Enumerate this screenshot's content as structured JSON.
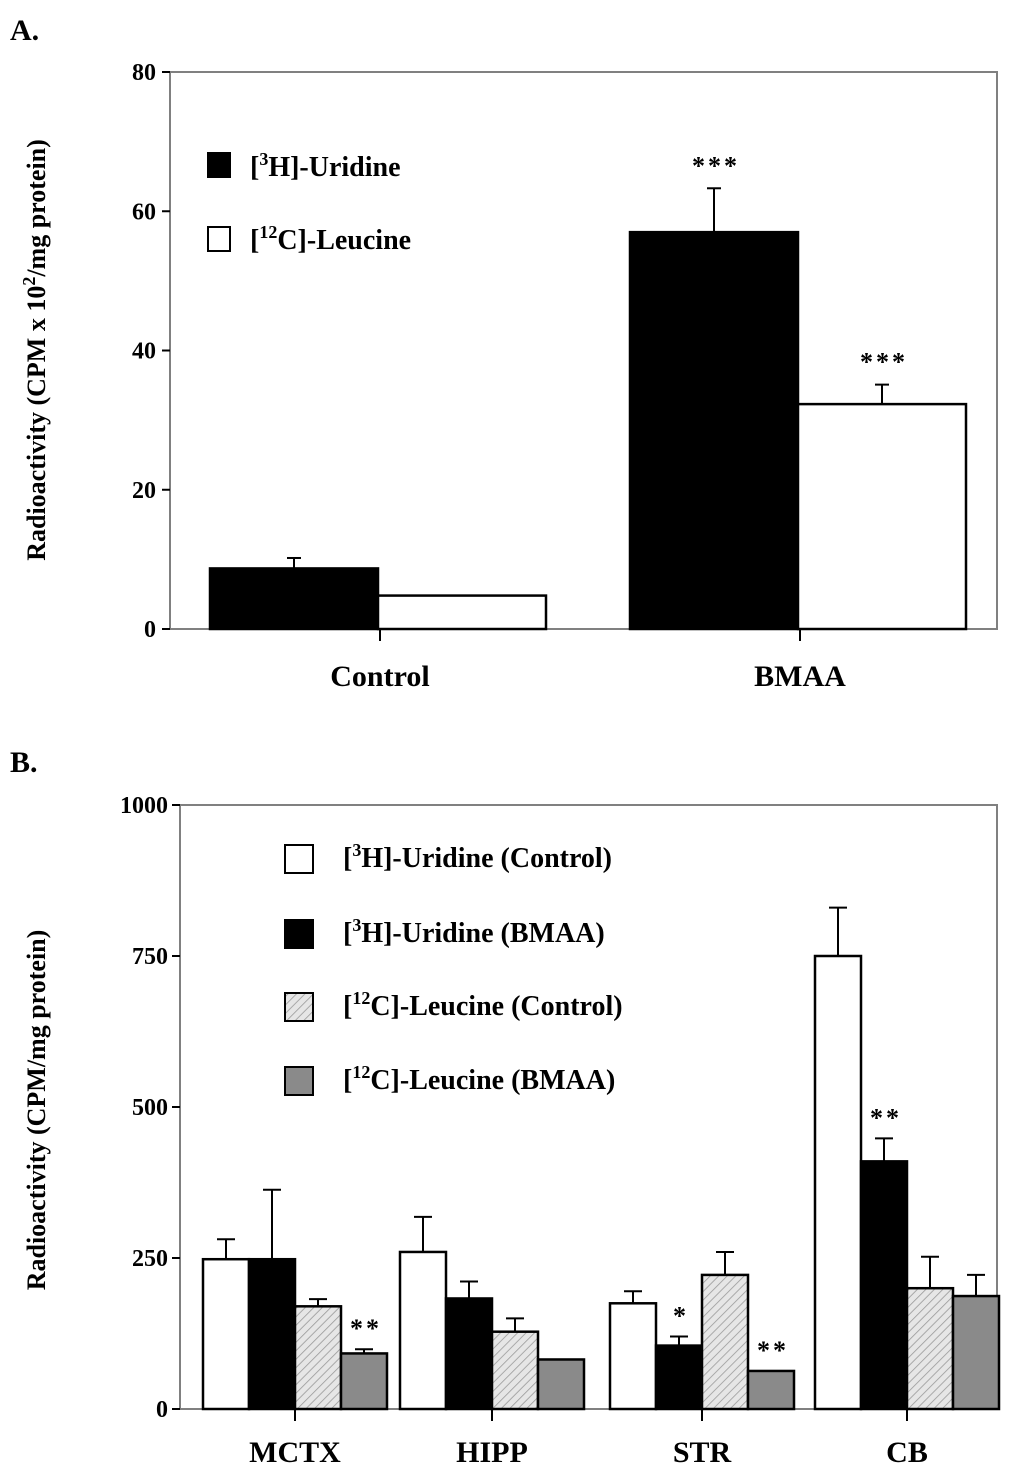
{
  "chart_data": [
    {
      "panel": "A.",
      "type": "bar",
      "categories": [
        "Control",
        "BMAA"
      ],
      "ylabel": {
        "main": "Radioactivity (CPM x 10",
        "sup": "2",
        "tail": "/mg protein)"
      },
      "ylim": [
        0,
        80
      ],
      "yticks": [
        0,
        20,
        40,
        60,
        80
      ],
      "series": [
        {
          "name": {
            "pre": "[",
            "sup": "3",
            "post": "H]-Uridine"
          },
          "fill": "#000000",
          "values": [
            8.7,
            57
          ],
          "errors": [
            1.5,
            6.3
          ],
          "significance": [
            "",
            "***"
          ]
        },
        {
          "name": {
            "pre": "[",
            "sup": "12",
            "post": "C]-Leucine"
          },
          "fill": "#ffffff",
          "values": [
            4.8,
            32.3
          ],
          "errors": [
            0.0,
            2.8
          ],
          "significance": [
            "",
            "***"
          ]
        }
      ]
    },
    {
      "panel": "B.",
      "type": "bar",
      "categories": [
        "MCTX",
        "HIPP",
        "STR",
        "CB"
      ],
      "ylabel": {
        "main": "Radioactivity (CPM/mg protein)",
        "sup": "",
        "tail": ""
      },
      "ylim": [
        0,
        1000
      ],
      "yticks": [
        0,
        250,
        500,
        750,
        1000
      ],
      "series": [
        {
          "name": {
            "pre": "[",
            "sup": "3",
            "post": "H]-Uridine (Control)"
          },
          "fill": "#ffffff",
          "values": [
            248,
            260,
            175,
            750
          ],
          "errors": [
            33,
            58,
            20,
            80
          ],
          "significance": [
            "",
            "",
            "",
            ""
          ]
        },
        {
          "name": {
            "pre": "[",
            "sup": "3",
            "post": "H]-Uridine (BMAA)"
          },
          "fill": "#000000",
          "values": [
            248,
            183,
            105,
            410
          ],
          "errors": [
            115,
            28,
            15,
            38
          ],
          "significance": [
            "",
            "",
            "*",
            "**"
          ]
        },
        {
          "name": {
            "pre": "[",
            "sup": "12",
            "post": "C]-Leucine (Control)"
          },
          "fill": "hatch",
          "values": [
            170,
            128,
            222,
            200
          ],
          "errors": [
            12,
            22,
            38,
            52
          ],
          "significance": [
            "",
            "",
            "",
            ""
          ]
        },
        {
          "name": {
            "pre": "[",
            "sup": "12",
            "post": "C]-Leucine (BMAA)"
          },
          "fill": "#8a8a8a",
          "values": [
            92,
            82,
            63,
            187
          ],
          "errors": [
            7,
            0,
            0,
            35
          ],
          "significance": [
            "**",
            "",
            "**",
            ""
          ]
        }
      ]
    }
  ]
}
